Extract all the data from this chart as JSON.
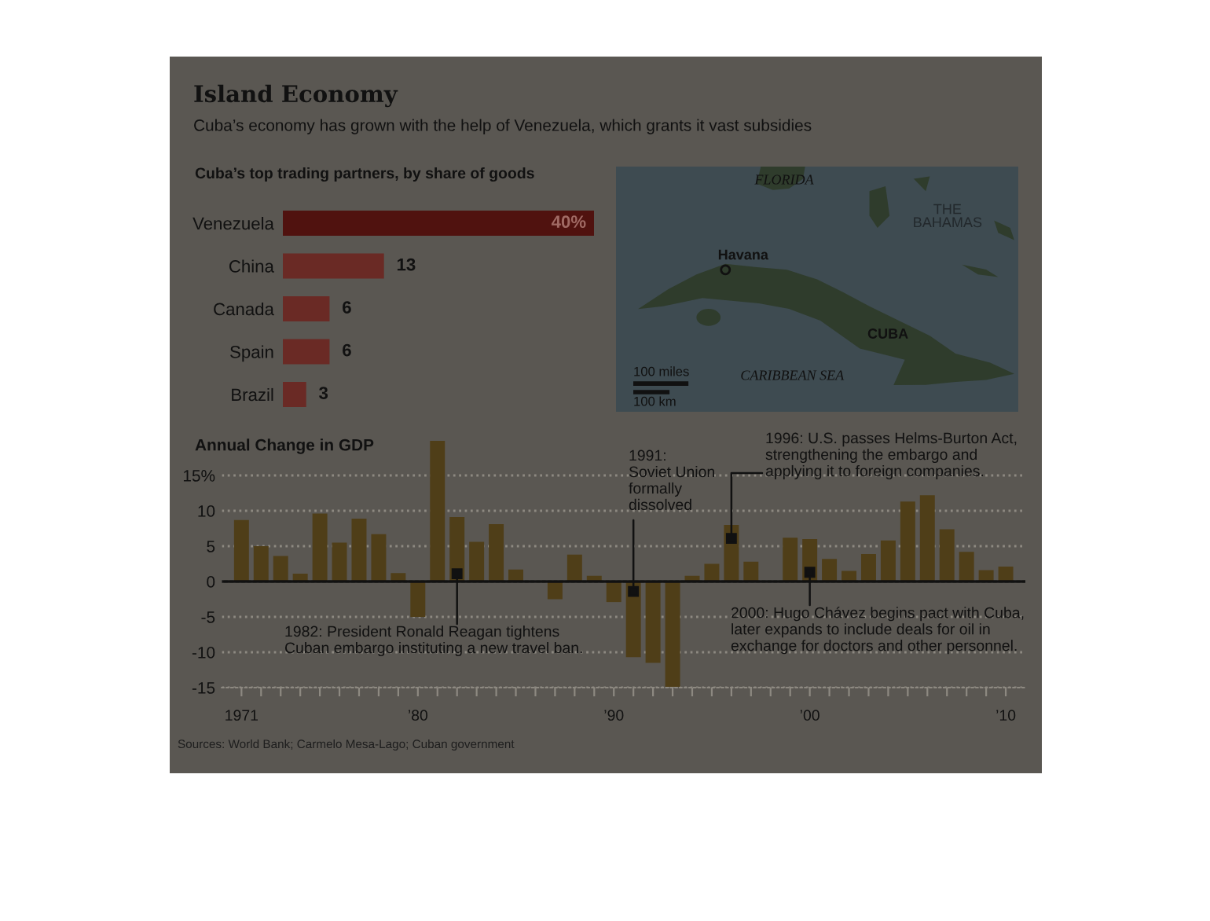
{
  "chart_data": [
    {
      "type": "other",
      "title": "Island Economy",
      "subtitle": "Cuba’s economy has grown with the help of Venezuela, which grants it vast subsidies",
      "annotations": [
        "Sources: World Bank; Carmelo Mesa-Lago; Cuban government"
      ]
    },
    {
      "type": "bar",
      "orientation": "horizontal",
      "title": "Cuba’s top trading partners, by share of goods",
      "categories": [
        "Venezuela",
        "China",
        "Canada",
        "Spain",
        "Brazil"
      ],
      "values": [
        40,
        13,
        6,
        6,
        3
      ],
      "value_labels": [
        "40%",
        "13",
        "6",
        "6",
        "3"
      ],
      "colors": [
        "#50120f",
        "#6a2a25",
        "#6a2a25",
        "#6a2a25",
        "#6a2a25"
      ]
    },
    {
      "type": "other",
      "annotations": [
        "FLORIDA",
        "THE\nBAHAMAS",
        "Havana",
        "CUBA",
        "CARIBBEAN SEA",
        "100 miles",
        "100 km"
      ]
    },
    {
      "type": "bar",
      "title": "Annual Change in GDP",
      "x": [
        1971,
        1972,
        1973,
        1974,
        1975,
        1976,
        1977,
        1978,
        1979,
        1980,
        1981,
        1982,
        1983,
        1984,
        1985,
        1986,
        1987,
        1988,
        1989,
        1990,
        1991,
        1992,
        1993,
        1994,
        1995,
        1996,
        1997,
        1998,
        1999,
        2000,
        2001,
        2002,
        2003,
        2004,
        2005,
        2006,
        2007,
        2008,
        2009,
        2010
      ],
      "values": [
        8.7,
        5.0,
        3.6,
        1.1,
        9.6,
        5.5,
        8.9,
        6.7,
        1.2,
        -5.0,
        19.9,
        9.1,
        5.6,
        8.1,
        1.7,
        null,
        -2.5,
        3.8,
        0.8,
        -2.9,
        -10.7,
        -11.5,
        -14.9,
        0.8,
        2.5,
        8.0,
        2.8,
        null,
        6.2,
        6.0,
        3.2,
        1.5,
        3.9,
        5.8,
        11.3,
        12.2,
        7.4,
        4.2,
        1.6,
        2.1
      ],
      "color": "#4f3e18",
      "xlim": [
        1970,
        2011
      ],
      "ylim": [
        -15,
        20
      ],
      "xticks": [
        1971,
        {
          "value": 1972,
          "label": null
        },
        {
          "value": 1973,
          "label": null
        },
        {
          "value": 1974,
          "label": null
        },
        {
          "value": 1975,
          "label": null
        },
        {
          "value": 1976,
          "label": null
        },
        {
          "value": 1977,
          "label": null
        },
        {
          "value": 1978,
          "label": null
        },
        {
          "value": 1979,
          "label": null
        },
        {
          "value": 1980,
          "label": "’80"
        },
        {
          "value": 1981,
          "label": null
        },
        {
          "value": 1982,
          "label": null
        },
        {
          "value": 1983,
          "label": null
        },
        {
          "value": 1984,
          "label": null
        },
        {
          "value": 1985,
          "label": null
        },
        {
          "value": 1986,
          "label": null
        },
        {
          "value": 1987,
          "label": null
        },
        {
          "value": 1988,
          "label": null
        },
        {
          "value": 1989,
          "label": null
        },
        {
          "value": 1990,
          "label": "’90"
        },
        {
          "value": 1991,
          "label": null
        },
        {
          "value": 1992,
          "label": null
        },
        {
          "value": 1993,
          "label": null
        },
        {
          "value": 1994,
          "label": null
        },
        {
          "value": 1995,
          "label": null
        },
        {
          "value": 1996,
          "label": null
        },
        {
          "value": 1997,
          "label": null
        },
        {
          "value": 1998,
          "label": null
        },
        {
          "value": 1999,
          "label": null
        },
        {
          "value": 2000,
          "label": "’00"
        },
        {
          "value": 2001,
          "label": null
        },
        {
          "value": 2002,
          "label": null
        },
        {
          "value": 2003,
          "label": null
        },
        {
          "value": 2004,
          "label": null
        },
        {
          "value": 2005,
          "label": null
        },
        {
          "value": 2006,
          "label": null
        },
        {
          "value": 2007,
          "label": null
        },
        {
          "value": 2008,
          "label": null
        },
        {
          "value": 2009,
          "label": null
        },
        {
          "value": 2010,
          "label": "’10"
        }
      ],
      "yticks": [
        {
          "value": 15,
          "label": "15%"
        },
        10,
        5,
        0,
        -5,
        -10,
        -15
      ],
      "grid": "y",
      "ref_lines": [
        {
          "axis": "y",
          "value": 0,
          "color": "#111111"
        }
      ],
      "annotations": [
        {
          "text": "1982: President Ronald Reagan tightens\nCuban embargo instituting a new travel ban.",
          "x": 1982,
          "y": 1.1
        },
        {
          "text": "1991:\nSoviet Union\nformally\ndissolved",
          "x": 1991,
          "y": -1.4
        },
        {
          "text": "1996: U.S. passes Helms-Burton Act,\nstrengthening the embargo and\napplying it to foreign companies.",
          "x": 1996,
          "y": 6.1
        },
        {
          "text": "2000: Hugo Chávez begins pact with Cuba,\nlater expands to include deals for oil in\nexchange for doctors and other personnel.",
          "x": 2000,
          "y": 1.3
        }
      ]
    }
  ]
}
